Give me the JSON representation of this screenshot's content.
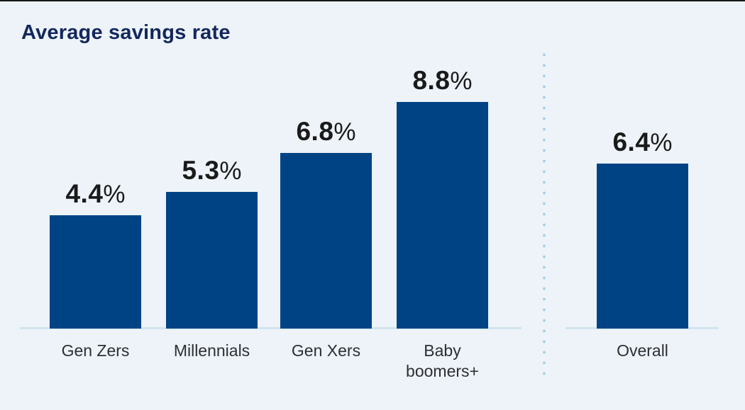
{
  "chart_data": {
    "type": "bar",
    "title": "Average savings rate",
    "categories": [
      "Gen Zers",
      "Millennials",
      "Gen Xers",
      "Baby boomers+",
      "Overall"
    ],
    "categories_display": [
      "Gen Zers",
      "Millennials",
      "Gen Xers",
      "Baby\nboomers+",
      "Overall"
    ],
    "values": [
      4.4,
      5.3,
      6.8,
      8.8,
      6.4
    ],
    "unit": "%",
    "value_labels": [
      "4.4%",
      "5.3%",
      "6.8%",
      "8.8%",
      "6.4%"
    ],
    "xlabel": "",
    "ylabel": "",
    "ylim": [
      0,
      9.6
    ],
    "grid": false,
    "legend": "none",
    "layout_hints": {
      "left_group": [
        "Gen Zers",
        "Millennials",
        "Gen Xers",
        "Baby boomers+"
      ],
      "right_group": [
        "Overall"
      ],
      "separator": "vertical-dotted-line",
      "value_labels_position": "above-bars",
      "axis": "baseline-only"
    },
    "colors": {
      "bar": "#004385",
      "title_text": "#13275e",
      "value_text": "#1a1a1a",
      "category_text": "#2d2f33",
      "baseline": "#d2e4f0",
      "separator_dots": "#a9cfe5",
      "background": "#edf3f8",
      "top_edge": "#161616"
    }
  }
}
